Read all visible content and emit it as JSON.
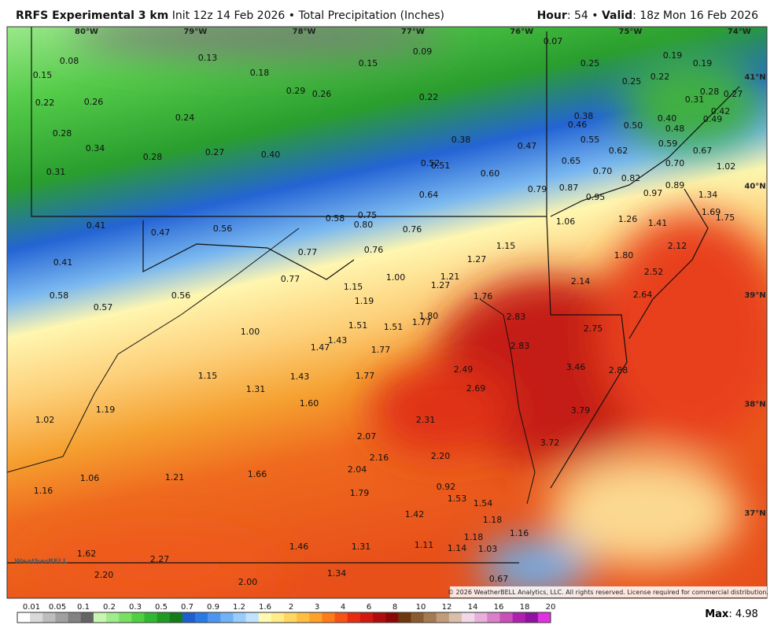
{
  "header": {
    "model": "RRFS Experimental 3 km",
    "description": "Init 12z 14 Feb 2026 • Total Precipitation (Inches)",
    "hour_label": "Hour",
    "hour_value": ": 54 •",
    "valid_label": "Valid",
    "valid_value": ": 18z Mon 16 Feb 2026"
  },
  "map": {
    "longitudes": [
      "80°W",
      "79°W",
      "78°W",
      "77°W",
      "76°W",
      "75°W",
      "74°W"
    ],
    "latitudes": [
      "41°N",
      "40°N",
      "39°N",
      "38°N",
      "37°N"
    ],
    "labels": [
      "0.08",
      "0.15",
      "0.13",
      "0.18",
      "0.15",
      "0.09",
      "0.07",
      "0.25",
      "0.19",
      "0.19",
      "0.25",
      "0.22",
      "0.22",
      "0.26",
      "0.29",
      "0.26",
      "0.22",
      "0.28",
      "0.31",
      "0.27",
      "0.24",
      "0.38",
      "0.40",
      "0.49",
      "0.42",
      "0.46",
      "0.50",
      "0.48",
      "0.28",
      "0.34",
      "0.38",
      "0.55",
      "0.47",
      "0.59",
      "0.27",
      "0.40",
      "0.28",
      "0.62",
      "0.67",
      "0.31",
      "0.52",
      "0.51",
      "0.65",
      "0.70",
      "1.02",
      "0.60",
      "0.70",
      "0.82",
      "0.79",
      "0.87",
      "0.64",
      "0.97",
      "0.89",
      "0.95",
      "1.34",
      "0.58",
      "0.75",
      "0.80",
      "1.69",
      "1.75",
      "1.26",
      "1.41",
      "1.06",
      "0.41",
      "0.47",
      "0.56",
      "0.76",
      "2.12",
      "1.15",
      "1.27",
      "0.77",
      "0.76",
      "1.80",
      "0.41",
      "1.00",
      "1.21",
      "2.52",
      "0.77",
      "1.15",
      "1.27",
      "2.14",
      "0.58",
      "0.56",
      "1.19",
      "1.76",
      "2.64",
      "0.57",
      "1.80",
      "2.83",
      "1.51",
      "1.51",
      "1.77",
      "2.75",
      "1.00",
      "1.43",
      "1.47",
      "1.77",
      "2.83",
      "3.46",
      "2.88",
      "2.49",
      "1.15",
      "1.43",
      "1.77",
      "2.69",
      "1.31",
      "1.60",
      "3.79",
      "1.19",
      "1.02",
      "2.31",
      "2.07",
      "3.72",
      "2.16",
      "2.20",
      "1.06",
      "1.21",
      "1.66",
      "2.04",
      "1.16",
      "0.92",
      "1.53",
      "1.54",
      "1.79",
      "1.42",
      "1.18",
      "1.16",
      "1.18",
      "1.46",
      "1.31",
      "1.11",
      "1.14",
      "1.03",
      "1.62",
      "2.27",
      "2.20",
      "1.34",
      "2.00",
      "0.67"
    ],
    "copyright": "© 2026 WeatherBELL Analytics, LLC. All rights reserved. License required for commercial distribution.",
    "logo": "WeatherBELL"
  },
  "legend": {
    "ticks": [
      "0.01",
      "0.05",
      "0.1",
      "0.2",
      "0.3",
      "0.5",
      "0.7",
      "0.9",
      "1.2",
      "1.6",
      "2",
      "3",
      "4",
      "6",
      "8",
      "10",
      "12",
      "14",
      "16",
      "18",
      "20"
    ],
    "max_label": "Max",
    "max_value": ": 4.98"
  }
}
